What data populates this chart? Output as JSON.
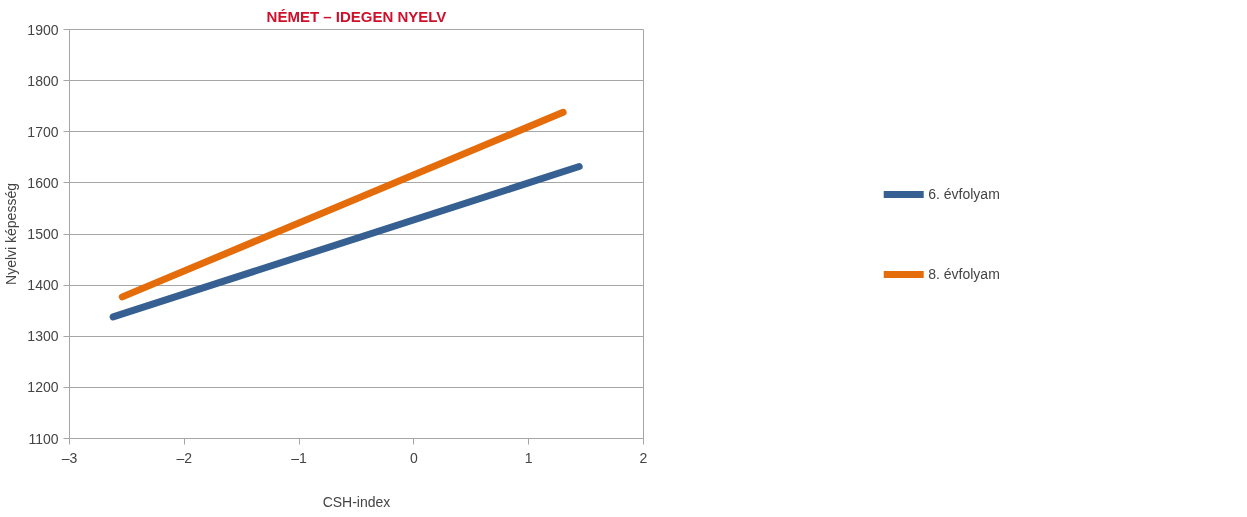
{
  "chart_data": {
    "type": "line",
    "title": "NÉMET – IDEGEN NYELV",
    "xlabel": "CSH-index",
    "ylabel": "Nyelvi képesség",
    "series": [
      {
        "name": "6. évfolyam",
        "color": "#376092",
        "x": [
          -2.62,
          1.44
        ],
        "values": [
          1338,
          1632
        ]
      },
      {
        "name": "8. évfolyam",
        "color": "#e46c0a",
        "x": [
          -2.54,
          1.3
        ],
        "values": [
          1377,
          1738
        ]
      }
    ],
    "xlim": [
      -3,
      2
    ],
    "xticks": [
      {
        "value": -3,
        "label": "–3"
      },
      {
        "value": -2,
        "label": "–2"
      },
      {
        "value": -1,
        "label": "–1"
      },
      0,
      1,
      2
    ],
    "ylim": [
      1100,
      1900
    ],
    "yticks": [
      1100,
      1200,
      1300,
      1400,
      1500,
      1600,
      1700,
      1800,
      1900
    ],
    "grid": "y",
    "legend": "right",
    "marker": "none",
    "line_style": "solid"
  }
}
